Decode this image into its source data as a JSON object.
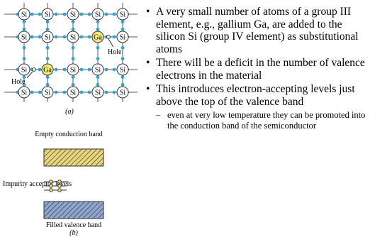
{
  "figure_a": {
    "lattice": [
      [
        "Si",
        "Si",
        "Si",
        "Si",
        "Si"
      ],
      [
        "Si",
        "Si",
        "Si",
        "Ga",
        "Si"
      ],
      [
        "Si",
        "Ga",
        "Si",
        "Si",
        "Si"
      ],
      [
        "Si",
        "Si",
        "Si",
        "Si",
        "Si"
      ]
    ],
    "hole_labels": [
      "Hole",
      "Hole"
    ],
    "caption": "(a)"
  },
  "figure_b": {
    "conduction_label": "Empty conduction band",
    "acceptor_label": "Impurity acceptor levels",
    "valence_label": "Filled valence band",
    "caption": "(b)"
  },
  "bullets": [
    "A very small number of atoms of a group III element, e.g., gallium Ga, are added to the silicon Si (group IV element) as substitutional atoms",
    "There will be a deficit in the number of valence electrons in the material",
    "This introduces electron-accepting levels just above the top of the valence band"
  ],
  "sub_bullets": [
    "even at very low temperature they can be promoted into the conduction band of the semiconductor"
  ]
}
